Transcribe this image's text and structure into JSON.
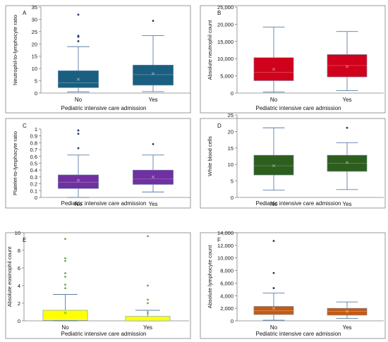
{
  "chart_data": [
    {
      "type": "box",
      "panel_label": "A",
      "ylabel": "Neutrophil-to-lymphocyte ratio",
      "xlabel": "Pediatric intensive care admission",
      "ylim": [
        0,
        35
      ],
      "yticks": [
        "0",
        "5",
        "10",
        "15",
        "20",
        "25",
        "30",
        "35"
      ],
      "tick_values": [
        0,
        5,
        10,
        15,
        20,
        25,
        30,
        35
      ],
      "categories": [
        "No",
        "Yes"
      ],
      "color": "#1a5f80",
      "boxes": [
        {
          "category": "No",
          "whisker_low": 0.5,
          "q1": 2.2,
          "median": 4.2,
          "q3": 9.1,
          "whisker_high": 18.9,
          "mean": 5.6,
          "outliers": [
            21.1,
            22.9,
            23.3,
            31.9
          ]
        },
        {
          "category": "Yes",
          "whisker_low": 0.6,
          "q1": 3.2,
          "median": 7.5,
          "q3": 11.4,
          "whisker_high": 23.4,
          "mean": 7.9,
          "outliers": [
            29.4
          ]
        }
      ]
    },
    {
      "type": "box",
      "panel_label": "B",
      "ylabel": "Absolute neutrophil count",
      "xlabel": "Pediatric intensive care admission",
      "ylim": [
        0,
        25000
      ],
      "yticks": [
        "0",
        "5,000",
        "10,000",
        "15,000",
        "20,000",
        "25,000"
      ],
      "tick_values": [
        0,
        5000,
        10000,
        15000,
        20000,
        25000
      ],
      "categories": [
        "No",
        "Yes"
      ],
      "color": "#d0021b",
      "boxes": [
        {
          "category": "No",
          "whisker_low": 300,
          "q1": 3600,
          "median": 6000,
          "q3": 10300,
          "whisker_high": 19200,
          "mean": 6900,
          "outliers": []
        },
        {
          "category": "Yes",
          "whisker_low": 700,
          "q1": 4700,
          "median": 8000,
          "q3": 11200,
          "whisker_high": 17900,
          "mean": 7700,
          "outliers": []
        }
      ]
    },
    {
      "type": "box",
      "panel_label": "C",
      "ylabel": "Platelet-to-lymphocyte ratio",
      "xlabel": "Pediatric intensive care admission",
      "ylim": [
        0,
        1
      ],
      "yticks": [
        "0",
        "0.1",
        "0.2",
        "0.3",
        "0.4",
        "0.5",
        "0.6",
        "0.7",
        "0.8",
        "0.9",
        "1"
      ],
      "tick_values": [
        0,
        0.1,
        0.2,
        0.3,
        0.4,
        0.5,
        0.6,
        0.7,
        0.8,
        0.9,
        1
      ],
      "categories": [
        "No",
        "Yes"
      ],
      "color": "#7030a0",
      "boxes": [
        {
          "category": "No",
          "whisker_low": 0.0,
          "q1": 0.13,
          "median": 0.22,
          "q3": 0.33,
          "whisker_high": 0.62,
          "mean": 0.25,
          "outliers": [
            0.72,
            0.93,
            0.98
          ]
        },
        {
          "category": "Yes",
          "whisker_low": 0.08,
          "q1": 0.19,
          "median": 0.27,
          "q3": 0.4,
          "whisker_high": 0.62,
          "mean": 0.3,
          "outliers": [
            0.78
          ]
        }
      ]
    },
    {
      "type": "box",
      "panel_label": "D",
      "ylabel": "White blood cells",
      "xlabel": "Pediatric intensive care admission",
      "ylim": [
        0,
        25
      ],
      "yticks": [
        "0",
        "5",
        "10",
        "15",
        "20",
        "25"
      ],
      "tick_values": [
        0,
        5,
        10,
        15,
        20,
        25
      ],
      "categories": [
        "No",
        "Yes"
      ],
      "color": "#2e5e1e",
      "boxes": [
        {
          "category": "No",
          "whisker_low": 2.2,
          "q1": 6.8,
          "median": 9.6,
          "q3": 12.8,
          "whisker_high": 21.1,
          "mean": 9.6,
          "outliers": []
        },
        {
          "category": "Yes",
          "whisker_low": 2.4,
          "q1": 7.9,
          "median": 10.4,
          "q3": 12.8,
          "whisker_high": 16.6,
          "mean": 10.6,
          "outliers": [
            21.1
          ]
        }
      ]
    },
    {
      "type": "box",
      "panel_label": "E",
      "ylabel": "Absolute eosinophil count",
      "xlabel": "Pediatric intensive care admission",
      "ylim": [
        0,
        10
      ],
      "yticks": [
        "0",
        "2",
        "4",
        "6",
        "8",
        "10"
      ],
      "tick_values": [
        0,
        2,
        4,
        6,
        8,
        10
      ],
      "categories": [
        "No",
        "Yes"
      ],
      "color": "#ffff00",
      "marker_color": "#6aa84f",
      "boxes": [
        {
          "category": "No",
          "whisker_low": 0.0,
          "q1": 0.05,
          "median": 0.2,
          "q3": 1.2,
          "whisker_high": 3.0,
          "mean": 0.9,
          "outliers": [
            3.7,
            4.1,
            5.0,
            5.4,
            6.8,
            7.1,
            9.3
          ]
        },
        {
          "category": "Yes",
          "whisker_low": 0.0,
          "q1": 0.0,
          "median": 0.05,
          "q3": 0.5,
          "whisker_high": 1.2,
          "mean": 0.9,
          "outliers": [
            2.0,
            2.4,
            4.0,
            9.6
          ]
        }
      ]
    },
    {
      "type": "box",
      "panel_label": "F",
      "ylabel": "Absolute lymphocyte count",
      "xlabel": "Pediatric intensive care admission",
      "ylim": [
        0,
        14000
      ],
      "yticks": [
        "0",
        "2,000",
        "4,000",
        "6,000",
        "8,000",
        "10,000",
        "12,000",
        "14,000"
      ],
      "tick_values": [
        0,
        2000,
        4000,
        6000,
        8000,
        10000,
        12000,
        14000
      ],
      "categories": [
        "No",
        "Yes"
      ],
      "color": "#c55a11",
      "boxes": [
        {
          "category": "No",
          "whisker_low": 100,
          "q1": 1000,
          "median": 1600,
          "q3": 2300,
          "whisker_high": 4400,
          "mean": 2000,
          "outliers": [
            5200,
            7600,
            12700
          ]
        },
        {
          "category": "Yes",
          "whisker_low": 400,
          "q1": 900,
          "median": 1500,
          "q3": 2000,
          "whisker_high": 3000,
          "mean": 1500,
          "outliers": []
        }
      ]
    }
  ]
}
